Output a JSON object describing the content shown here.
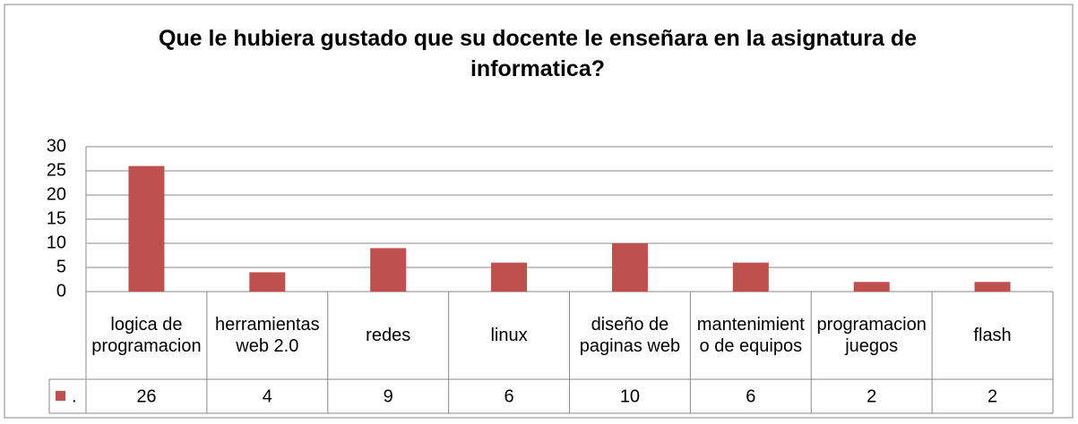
{
  "chart_data": {
    "type": "bar",
    "title": "Que le hubiera gustado que su docente le enseñara en la asignatura de informatica?",
    "categories": [
      "logica de programacion",
      "herramientas web 2.0",
      "redes",
      "linux",
      "diseño de paginas web",
      "mantenimiento de equipos",
      "programacion juegos",
      "flash"
    ],
    "series": [
      {
        "name": ".",
        "color": "#c0504d",
        "values": [
          26,
          4,
          9,
          6,
          10,
          6,
          2,
          2
        ]
      }
    ],
    "ylim": [
      0,
      30
    ],
    "yticks": [
      0,
      5,
      10,
      15,
      20,
      25,
      30
    ],
    "grid": true
  }
}
